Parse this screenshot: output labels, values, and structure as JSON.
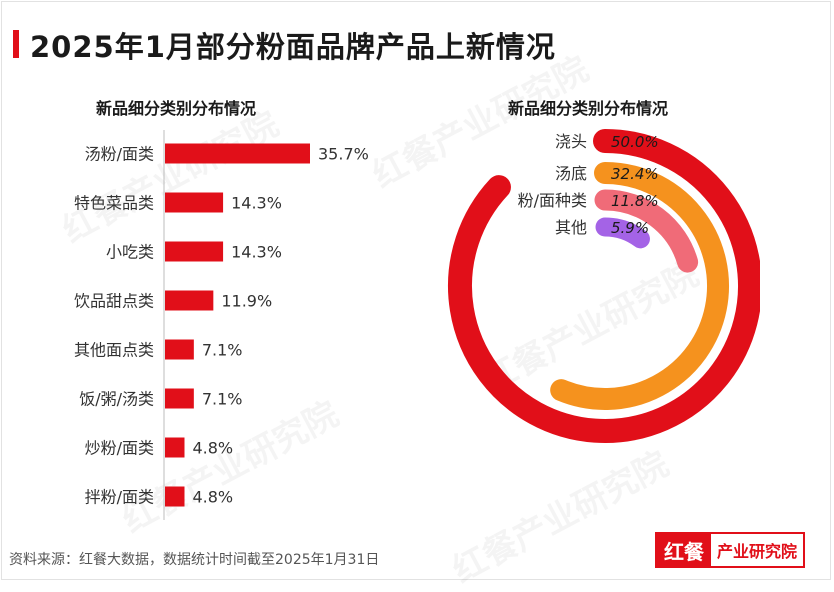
{
  "title": "2025年1月部分粉面品牌产品上新情况",
  "source": "资料来源：红餐大数据，数据统计时间截至2025年1月31日",
  "watermark_text": "红餐产业研究院",
  "logo": {
    "left": "红餐",
    "right": "产业研究院"
  },
  "colors": {
    "accent": "#e10f19",
    "bar": "#e10f19"
  },
  "chart_data": [
    {
      "type": "bar",
      "orientation": "horizontal",
      "title": "新品细分类别分布情况",
      "categories": [
        "汤粉/面类",
        "特色菜品类",
        "小吃类",
        "饮品甜点类",
        "其他面点类",
        "饭/粥/汤类",
        "炒粉/面类",
        "拌粉/面类"
      ],
      "values": [
        35.7,
        14.3,
        14.3,
        11.9,
        7.1,
        7.1,
        4.8,
        4.8
      ],
      "labels": [
        "35.7%",
        "14.3%",
        "14.3%",
        "11.9%",
        "7.1%",
        "7.1%",
        "4.8%",
        "4.8%"
      ],
      "unit": "%"
    },
    {
      "type": "radial-bar",
      "title": "新品细分类别分布情况",
      "categories": [
        "浇头",
        "汤底",
        "粉/面种类",
        "其他"
      ],
      "values": [
        50.0,
        32.4,
        11.8,
        5.9
      ],
      "labels": [
        "50.0%",
        "32.4%",
        "11.8%",
        "5.9%"
      ],
      "colors": [
        "#e10f19",
        "#f5921e",
        "#f06b78",
        "#a463e6"
      ],
      "unit": "%"
    }
  ]
}
